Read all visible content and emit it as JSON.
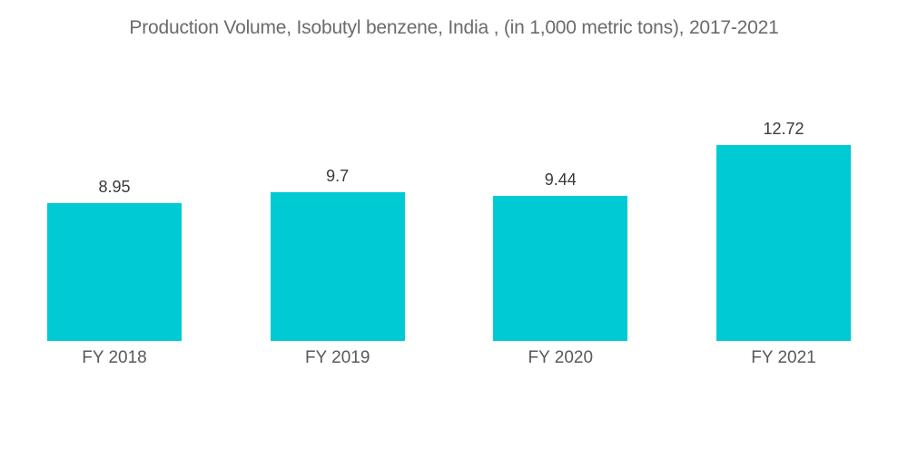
{
  "chart_data": {
    "type": "bar",
    "title": "Production Volume, Isobutyl benzene, India , (in 1,000 metric tons), 2017-2021",
    "categories": [
      "FY 2018",
      "FY 2019",
      "FY 2020",
      "FY 2021"
    ],
    "values": [
      8.95,
      9.7,
      9.44,
      12.72
    ],
    "value_labels": [
      "8.95",
      "9.7",
      "9.44",
      "12.72"
    ],
    "xlabel": "",
    "ylabel": "",
    "ylim": [
      0,
      13.5
    ],
    "grid": false,
    "legend": false,
    "axes_visible": false,
    "bar_color": "#00CBD4",
    "title_color": "#6b6b6b",
    "value_label_color": "#3a3a3a",
    "category_label_color": "#595959",
    "background_color": "#ffffff"
  }
}
